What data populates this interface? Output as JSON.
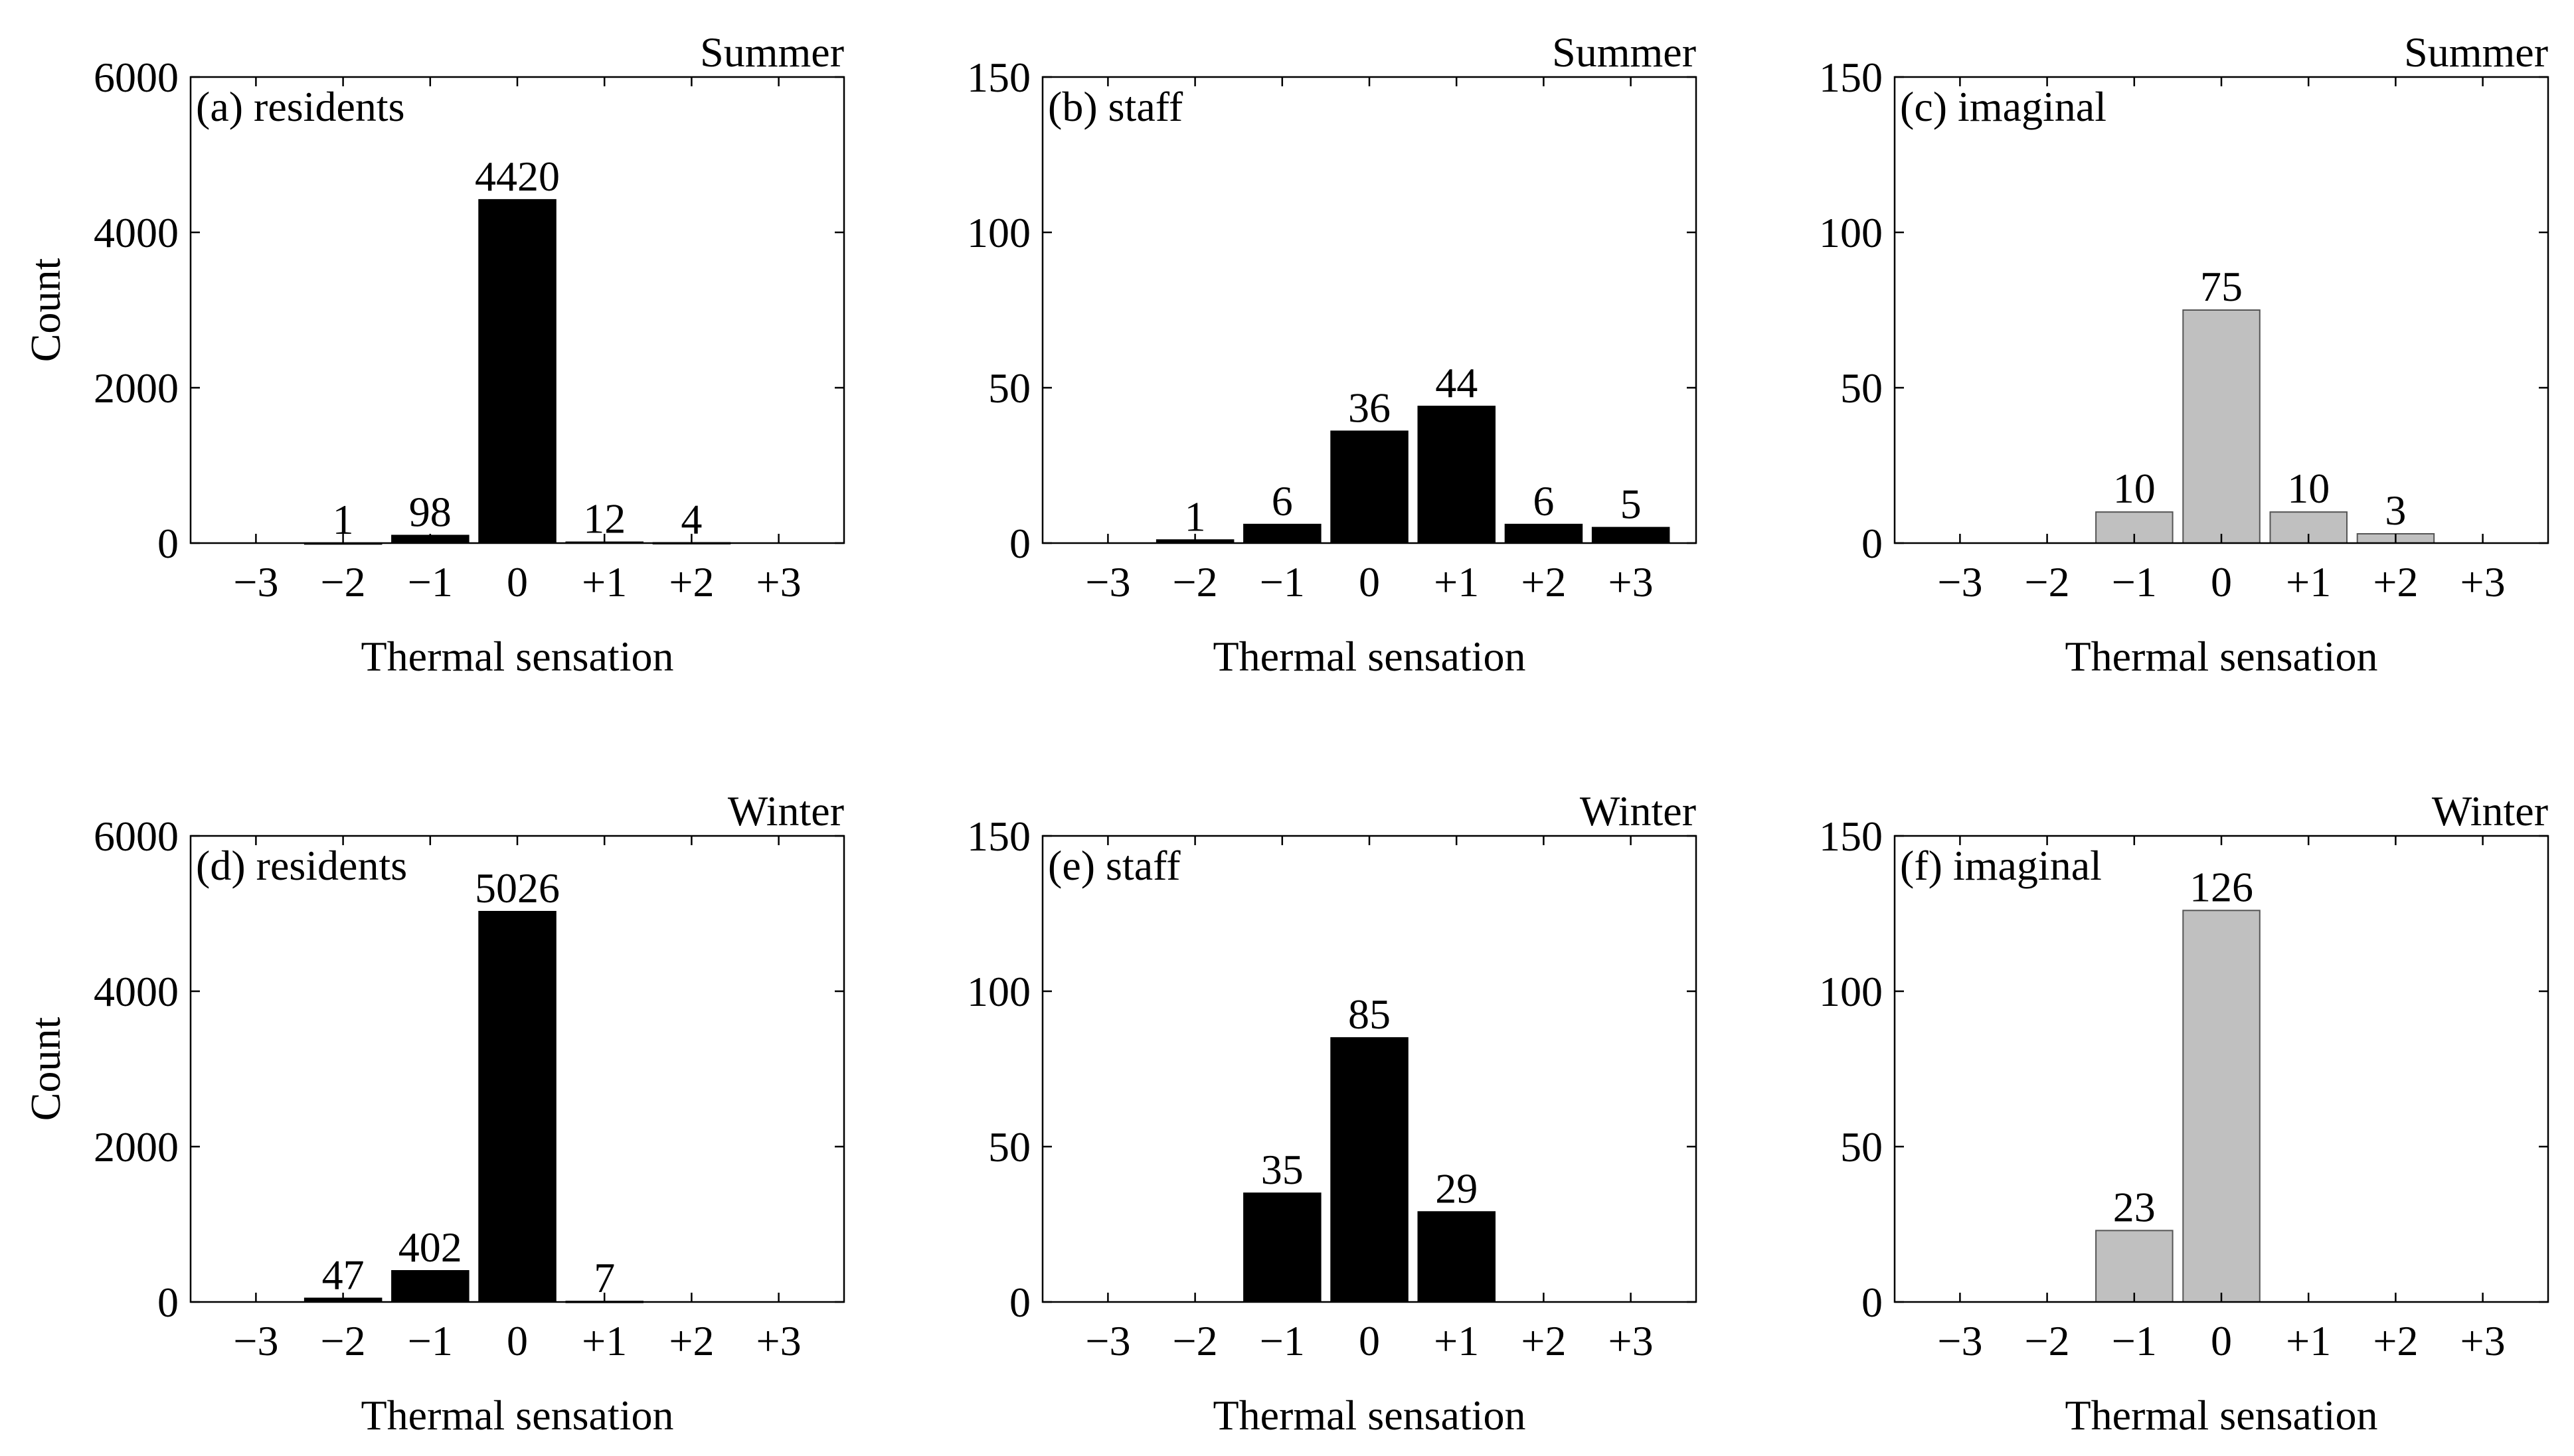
{
  "chart_data": [
    {
      "type": "bar",
      "panel": "(a) residents",
      "season": "Summer",
      "categories": [
        "−3",
        "−2",
        "−1",
        "0",
        "+1",
        "+2",
        "+3"
      ],
      "values": [
        0,
        1,
        98,
        4420,
        12,
        4,
        0
      ],
      "data_labels": [
        "",
        "1",
        "98",
        "4420",
        "12",
        "4",
        ""
      ],
      "bar_color": "#000000",
      "xlabel": "Thermal sensation",
      "ylabel": "Count",
      "ylim": [
        0,
        6000
      ],
      "yticks": [
        0,
        2000,
        4000,
        6000
      ],
      "ytick_labels": [
        "0",
        "2000",
        "4000",
        "6000"
      ]
    },
    {
      "type": "bar",
      "panel": "(b) staff",
      "season": "Summer",
      "categories": [
        "−3",
        "−2",
        "−1",
        "0",
        "+1",
        "+2",
        "+3"
      ],
      "values": [
        0,
        1,
        6,
        36,
        44,
        6,
        5
      ],
      "data_labels": [
        "",
        "1",
        "6",
        "36",
        "44",
        "6",
        "5"
      ],
      "bar_color": "#000000",
      "xlabel": "Thermal sensation",
      "ylabel": "",
      "ylim": [
        0,
        150
      ],
      "yticks": [
        0,
        50,
        100,
        150
      ],
      "ytick_labels": [
        "0",
        "50",
        "100",
        "150"
      ]
    },
    {
      "type": "bar",
      "panel": "(c) imaginal",
      "season": "Summer",
      "categories": [
        "−3",
        "−2",
        "−1",
        "0",
        "+1",
        "+2",
        "+3"
      ],
      "values": [
        0,
        0,
        10,
        75,
        10,
        3,
        0
      ],
      "data_labels": [
        "",
        "",
        "10",
        "75",
        "10",
        "3",
        ""
      ],
      "bar_color": "#c0c0c0",
      "xlabel": "Thermal sensation",
      "ylabel": "",
      "ylim": [
        0,
        150
      ],
      "yticks": [
        0,
        50,
        100,
        150
      ],
      "ytick_labels": [
        "0",
        "50",
        "100",
        "150"
      ]
    },
    {
      "type": "bar",
      "panel": "(d) residents",
      "season": "Winter",
      "categories": [
        "−3",
        "−2",
        "−1",
        "0",
        "+1",
        "+2",
        "+3"
      ],
      "values": [
        0,
        47,
        402,
        5026,
        7,
        0,
        0
      ],
      "data_labels": [
        "",
        "47",
        "402",
        "5026",
        "7",
        "",
        ""
      ],
      "bar_color": "#000000",
      "xlabel": "Thermal sensation",
      "ylabel": "Count",
      "ylim": [
        0,
        6000
      ],
      "yticks": [
        0,
        2000,
        4000,
        6000
      ],
      "ytick_labels": [
        "0",
        "2000",
        "4000",
        "6000"
      ]
    },
    {
      "type": "bar",
      "panel": "(e) staff",
      "season": "Winter",
      "categories": [
        "−3",
        "−2",
        "−1",
        "0",
        "+1",
        "+2",
        "+3"
      ],
      "values": [
        0,
        0,
        35,
        85,
        29,
        0,
        0
      ],
      "data_labels": [
        "",
        "",
        "35",
        "85",
        "29",
        "",
        ""
      ],
      "bar_color": "#000000",
      "xlabel": "Thermal sensation",
      "ylabel": "",
      "ylim": [
        0,
        150
      ],
      "yticks": [
        0,
        50,
        100,
        150
      ],
      "ytick_labels": [
        "0",
        "50",
        "100",
        "150"
      ]
    },
    {
      "type": "bar",
      "panel": "(f) imaginal",
      "season": "Winter",
      "categories": [
        "−3",
        "−2",
        "−1",
        "0",
        "+1",
        "+2",
        "+3"
      ],
      "values": [
        0,
        0,
        23,
        126,
        0,
        0,
        0
      ],
      "data_labels": [
        "",
        "",
        "23",
        "126",
        "",
        "",
        ""
      ],
      "bar_color": "#c0c0c0",
      "xlabel": "Thermal sensation",
      "ylabel": "",
      "ylim": [
        0,
        150
      ],
      "yticks": [
        0,
        50,
        100,
        150
      ],
      "ytick_labels": [
        "0",
        "50",
        "100",
        "150"
      ]
    }
  ]
}
